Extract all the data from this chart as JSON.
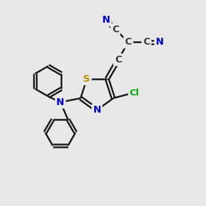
{
  "bg_color": "#e8e8e8",
  "atom_colors": {
    "C": "#404040",
    "N": "#0000cc",
    "S": "#b8900a",
    "Cl": "#00aa00",
    "bond": "#1a1a1a"
  },
  "lw": 1.8,
  "fontsize": 10
}
